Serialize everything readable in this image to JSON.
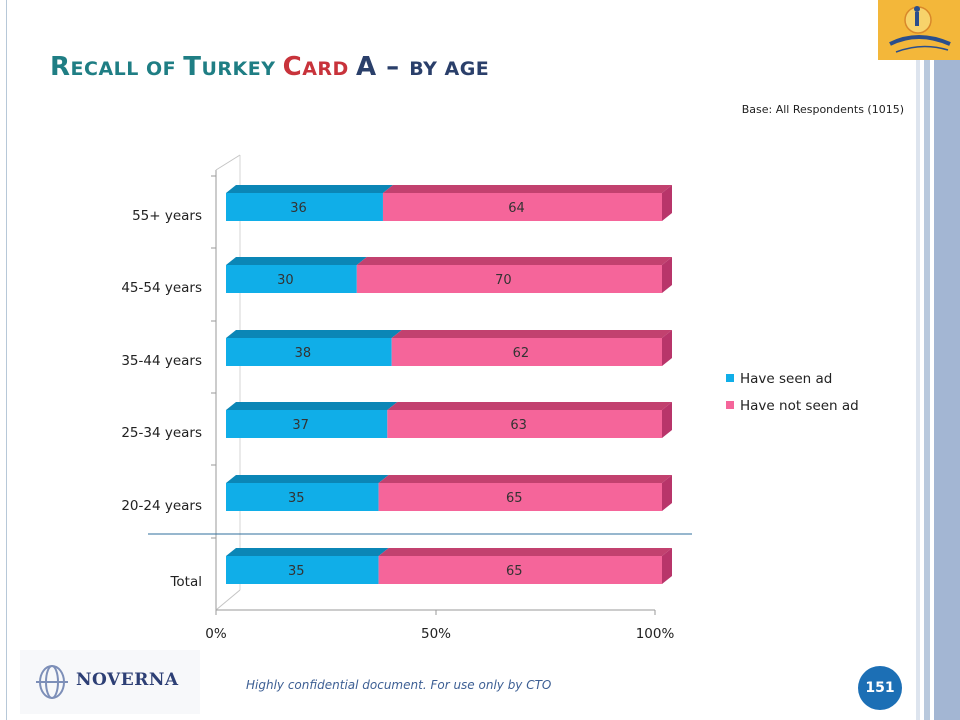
{
  "title": {
    "seg1_big": "R",
    "seg1_small": "ECALL OF ",
    "seg2_big": "T",
    "seg2_small": "URKEY ",
    "seg3_big": "C",
    "seg3_small": "ARD ",
    "seg4": "A",
    "seg5": " – ",
    "seg6_small": "BY AGE"
  },
  "base_note": "Base: All Respondents (1015)",
  "footer": "Highly confidential document. For use only by CTO",
  "page_number": "151",
  "brand_name": "NOVERNA",
  "colors": {
    "seen": "#10aee8",
    "not_seen": "#f5659a",
    "title_teal": "#1f7e84",
    "title_red": "#c8333b",
    "title_navy": "#2a3f6a"
  },
  "icons": [
    "cyprus-logo-icon",
    "noverna-logo-icon"
  ],
  "chart_data": {
    "type": "bar",
    "orientation": "horizontal",
    "stacked": "100%",
    "categories": [
      "55+ years",
      "45-54 years",
      "35-44 years",
      "25-34 years",
      "20-24 years",
      "Total"
    ],
    "series": [
      {
        "name": "Have seen ad",
        "values": [
          36,
          30,
          38,
          37,
          35,
          35
        ]
      },
      {
        "name": "Have not seen ad",
        "values": [
          64,
          70,
          62,
          63,
          65,
          65
        ]
      }
    ],
    "xlim": [
      0,
      100
    ],
    "xticks": [
      "0%",
      "50%",
      "100%"
    ],
    "legend": "right",
    "grid": false,
    "style": "3d"
  }
}
